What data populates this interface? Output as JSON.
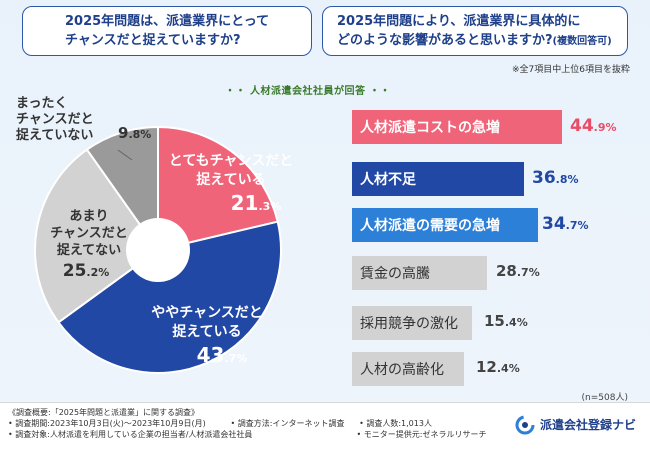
{
  "questions": {
    "q1_line1": "2025年問題は、派遣業界にとって",
    "q1_line2": "チャンスだと捉えていますか?",
    "q2_line1": "2025年問題により、派遣業界に具体的に",
    "q2_line2": "どのような影響があると思いますか?",
    "q2_suffix": "(複数回答可)"
  },
  "note": "※全7項目中上位6項目を抜粋",
  "respondents": "人材派遣会社社員が回答",
  "sample_size": "(n=508人)",
  "colors": {
    "pink": "#f06479",
    "navy": "#2148a4",
    "blue": "#2c80d8",
    "gray": "#d2d2d2",
    "darkgray": "#9a9a9a"
  },
  "chart_data": [
    {
      "type": "pie",
      "title": "2025年問題は、派遣業界にとってチャンスだと捉えていますか?",
      "categories": [
        "とてもチャンスだと捉えている",
        "ややチャンスだと捉えている",
        "あまりチャンスだと捉えてない",
        "まったくチャンスだと捉えていない"
      ],
      "values": [
        21.3,
        43.7,
        25.2,
        9.8
      ],
      "labels": {
        "very_l1": "とてもチャンスだと",
        "very_l2": "捉えている",
        "very_int": "21",
        "very_dec": ".3%",
        "some_l1": "ややチャンスだと",
        "some_l2": "捉えている",
        "some_int": "43",
        "some_dec": ".7%",
        "notmuch_l1": "あまり",
        "notmuch_l2": "チャンスだと",
        "notmuch_l3": "捉えてない",
        "notmuch_int": "25",
        "notmuch_dec": ".2%",
        "never_l1": "まったく",
        "never_l2": "チャンスだと",
        "never_l3": "捉えていない",
        "never_int": "9",
        "never_dec": ".8%"
      }
    },
    {
      "type": "bar",
      "orientation": "horizontal",
      "title": "2025年問題により、派遣業界に具体的にどのような影響があると思いますか?(複数回答可)",
      "categories": [
        "人材派遣コストの急増",
        "人材不足",
        "人材派遣の需要の急増",
        "賃金の高騰",
        "採用競争の激化",
        "人材の高齢化"
      ],
      "values": [
        44.9,
        36.8,
        34.7,
        28.7,
        15.4,
        12.4
      ],
      "value_int": [
        "44",
        "36",
        "34",
        "28",
        "15",
        "12"
      ],
      "value_dec": [
        ".9%",
        ".8%",
        ".7%",
        ".7%",
        ".4%",
        ".4%"
      ],
      "unit": "%"
    }
  ],
  "footer": {
    "overview": "《調査概要:「2025年問題と派遣業」に関する調査》",
    "period": "• 調査期間:2023年10月3日(火)〜2023年10月9日(月)",
    "method": "• 調査方法:インターネット調査",
    "count": "• 調査人数:1,013人",
    "target": "• 調査対象:人材派遣を利用している企業の担当者/人材派遣会社社員",
    "provider": "• モニター提供元:ゼネラルリサーチ",
    "brand": "派遣会社登録ナビ"
  }
}
